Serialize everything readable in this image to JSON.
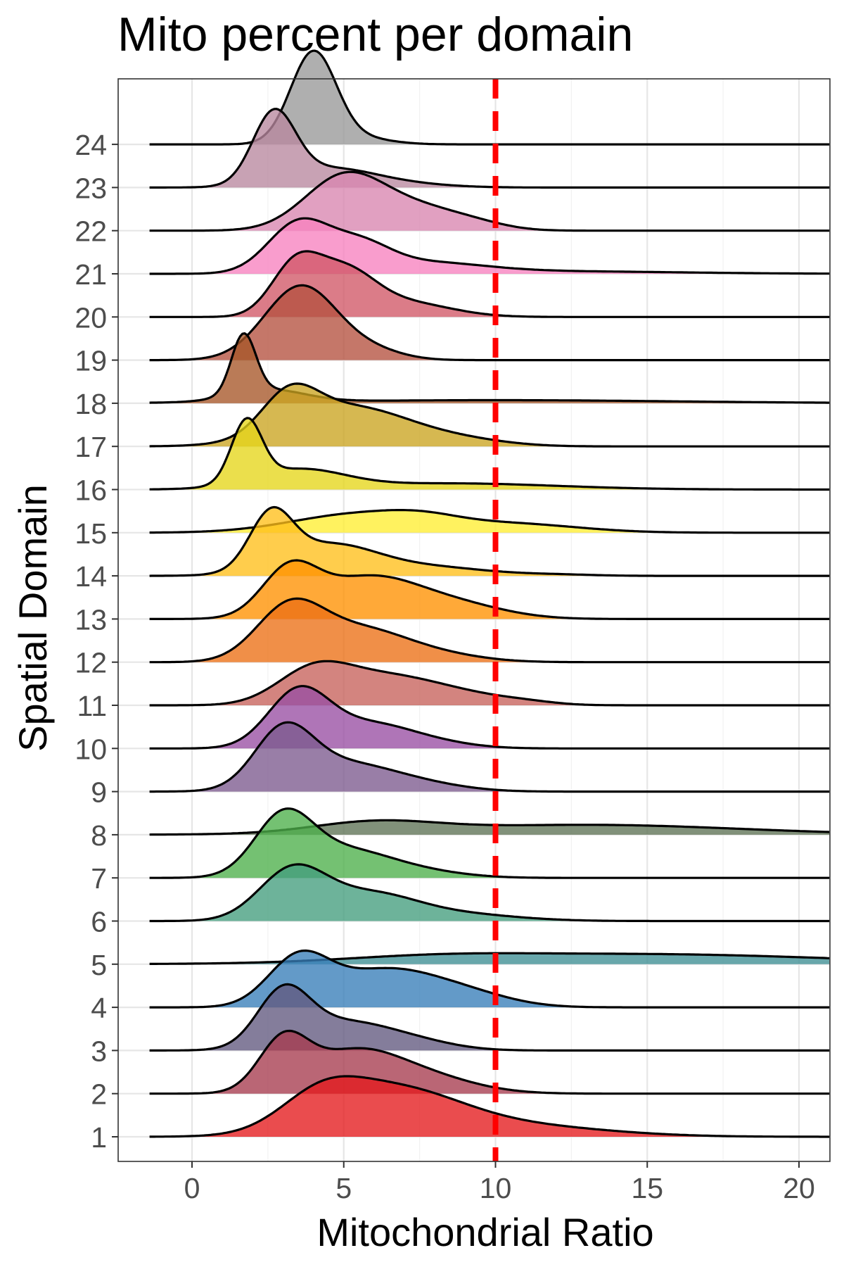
{
  "chart_data": {
    "type": "ridgeline",
    "title": "Mito percent per domain",
    "xlabel": "Mitochondrial Ratio",
    "ylabel": "Spatial Domain",
    "xlim": [
      -2.4,
      21
    ],
    "x_ticks": [
      0,
      5,
      10,
      15,
      20
    ],
    "categories": [
      "1",
      "2",
      "3",
      "4",
      "5",
      "6",
      "7",
      "8",
      "9",
      "10",
      "11",
      "12",
      "13",
      "14",
      "15",
      "16",
      "17",
      "18",
      "19",
      "20",
      "21",
      "22",
      "23",
      "24"
    ],
    "reference_line": {
      "x": 10,
      "color": "#ff0000",
      "style": "dashed"
    },
    "grid": true,
    "density_x_range": [
      -1.4,
      21
    ],
    "series": [
      {
        "name": "1",
        "color": "#e41a1c",
        "density_peaks": [
          [
            4.2,
            1.3,
            0.45
          ],
          [
            6.5,
            2.2,
            0.72
          ],
          [
            10.5,
            3.0,
            0.18
          ]
        ]
      },
      {
        "name": "2",
        "color": "#a73b4e",
        "density_peaks": [
          [
            3.0,
            0.8,
            0.78
          ],
          [
            5.2,
            1.5,
            0.6
          ],
          [
            7.5,
            1.7,
            0.28
          ]
        ]
      },
      {
        "name": "3",
        "color": "#61587f",
        "density_peaks": [
          [
            3.0,
            0.85,
            0.85
          ],
          [
            5.0,
            1.6,
            0.45
          ],
          [
            7.5,
            1.3,
            0.1
          ]
        ]
      },
      {
        "name": "4",
        "color": "#377eb8",
        "density_peaks": [
          [
            3.5,
            1.0,
            0.75
          ],
          [
            6.3,
            1.7,
            0.58
          ],
          [
            9.0,
            1.5,
            0.2
          ]
        ]
      },
      {
        "name": "5",
        "color": "#3e8e93",
        "density_peaks": [
          [
            8.0,
            3.0,
            0.08
          ],
          [
            15.0,
            6.0,
            0.16
          ]
        ]
      },
      {
        "name": "6",
        "color": "#449e7e",
        "density_peaks": [
          [
            3.3,
            1.1,
            0.8
          ],
          [
            5.8,
            1.5,
            0.4
          ],
          [
            8.5,
            2.0,
            0.12
          ]
        ]
      },
      {
        "name": "7",
        "color": "#4daf4a",
        "density_peaks": [
          [
            3.0,
            0.95,
            0.9
          ],
          [
            5.0,
            1.6,
            0.45
          ],
          [
            7.8,
            1.4,
            0.07
          ]
        ]
      },
      {
        "name": "8",
        "color": "#5d7255",
        "density_peaks": [
          [
            6.0,
            2.0,
            0.17
          ],
          [
            13.0,
            5.0,
            0.16
          ]
        ]
      },
      {
        "name": "9",
        "color": "#7c5a8e",
        "density_peaks": [
          [
            3.0,
            0.95,
            0.88
          ],
          [
            5.0,
            1.7,
            0.45
          ],
          [
            7.8,
            1.4,
            0.08
          ]
        ]
      },
      {
        "name": "10",
        "color": "#984ea3",
        "density_peaks": [
          [
            3.5,
            1.0,
            0.9
          ],
          [
            5.8,
            1.4,
            0.38
          ],
          [
            8.0,
            1.3,
            0.08
          ]
        ]
      },
      {
        "name": "11",
        "color": "#c6625b",
        "density_peaks": [
          [
            4.0,
            1.2,
            0.55
          ],
          [
            6.2,
            1.5,
            0.38
          ],
          [
            8.5,
            1.6,
            0.2
          ],
          [
            11.0,
            1.0,
            0.04
          ]
        ]
      },
      {
        "name": "12",
        "color": "#ec7014",
        "density_peaks": [
          [
            3.2,
            1.1,
            0.85
          ],
          [
            5.5,
            1.5,
            0.5
          ],
          [
            8.0,
            1.5,
            0.12
          ]
        ]
      },
      {
        "name": "13",
        "color": "#ff9100",
        "density_peaks": [
          [
            3.2,
            0.9,
            0.72
          ],
          [
            5.8,
            1.7,
            0.66
          ],
          [
            8.8,
            1.6,
            0.2
          ]
        ]
      },
      {
        "name": "14",
        "color": "#ffbf19",
        "density_peaks": [
          [
            2.6,
            0.7,
            0.85
          ],
          [
            4.5,
            1.6,
            0.5
          ],
          [
            8.0,
            1.8,
            0.13
          ],
          [
            12.0,
            1.2,
            0.02
          ]
        ]
      },
      {
        "name": "15",
        "color": "#ffee32",
        "density_peaks": [
          [
            5.5,
            2.2,
            0.3
          ],
          [
            7.6,
            1.2,
            0.1
          ],
          [
            10.5,
            2.2,
            0.14
          ]
        ]
      },
      {
        "name": "16",
        "color": "#e5d619",
        "density_peaks": [
          [
            1.8,
            0.5,
            0.98
          ],
          [
            3.5,
            1.5,
            0.3
          ],
          [
            8.5,
            3.5,
            0.1
          ]
        ]
      },
      {
        "name": "17",
        "color": "#cba420",
        "density_peaks": [
          [
            3.2,
            0.9,
            0.6
          ],
          [
            5.2,
            2.0,
            0.64
          ],
          [
            9.0,
            1.5,
            0.08
          ]
        ]
      },
      {
        "name": "18",
        "color": "#a65628",
        "density_peaks": [
          [
            1.7,
            0.4,
            0.95
          ],
          [
            2.5,
            1.2,
            0.2
          ],
          [
            10.0,
            6.0,
            0.05
          ]
        ]
      },
      {
        "name": "19",
        "color": "#b5513f",
        "density_peaks": [
          [
            3.6,
            1.2,
            1.2
          ],
          [
            6.0,
            1.0,
            0.13
          ]
        ]
      },
      {
        "name": "20",
        "color": "#d15766",
        "density_peaks": [
          [
            3.4,
            0.8,
            0.8
          ],
          [
            5.0,
            1.0,
            0.68
          ],
          [
            7.0,
            1.5,
            0.23
          ]
        ]
      },
      {
        "name": "21",
        "color": "#f781bf",
        "density_peaks": [
          [
            3.5,
            1.0,
            0.8
          ],
          [
            5.5,
            1.0,
            0.4
          ],
          [
            7.5,
            2.0,
            0.17
          ],
          [
            12.0,
            4.0,
            0.04
          ]
        ]
      },
      {
        "name": "22",
        "color": "#d885b0",
        "density_peaks": [
          [
            5.0,
            1.3,
            0.85
          ],
          [
            7.5,
            1.5,
            0.35
          ],
          [
            9.5,
            1.0,
            0.05
          ]
        ]
      },
      {
        "name": "23",
        "color": "#b9889f",
        "density_peaks": [
          [
            2.7,
            0.7,
            1.12
          ],
          [
            4.5,
            1.5,
            0.3
          ],
          [
            7.0,
            1.5,
            0.05
          ]
        ]
      },
      {
        "name": "24",
        "color": "#999999",
        "density_peaks": [
          [
            4.0,
            0.75,
            1.48
          ],
          [
            5.5,
            1.0,
            0.1
          ]
        ]
      }
    ]
  }
}
